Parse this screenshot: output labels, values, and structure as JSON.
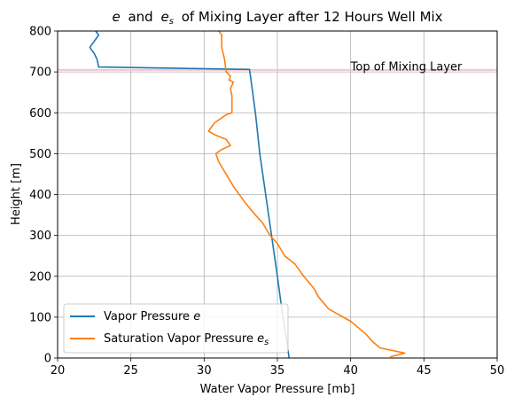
{
  "chart_data": {
    "type": "line",
    "title_main": "and",
    "title_tail": "of Mixing Layer after 12 Hours Well Mix",
    "title_e": "e",
    "title_es_base": "e",
    "title_es_sub": "s",
    "xlabel": "Water Vapor Pressure [mb]",
    "ylabel": "Height [m]",
    "xlim": [
      20,
      50
    ],
    "ylim": [
      0,
      800
    ],
    "xticks": [
      20,
      25,
      30,
      35,
      40,
      45,
      50
    ],
    "yticks": [
      0,
      100,
      200,
      300,
      400,
      500,
      600,
      700,
      800
    ],
    "grid": true,
    "legend_location": "lower-left",
    "annotation": {
      "text": "Top of Mixing Layer",
      "x": 40,
      "y": 712,
      "hline_y": 705,
      "line_color": "#f5c6cb"
    },
    "series": [
      {
        "name_prefix": "Vapor Pressure ",
        "name_var": "e",
        "name_sub": "",
        "color": "#1f77b4",
        "points": [
          [
            35.8,
            0
          ],
          [
            35.6,
            50
          ],
          [
            35.3,
            120
          ],
          [
            35.0,
            200
          ],
          [
            34.6,
            300
          ],
          [
            34.2,
            400
          ],
          [
            33.8,
            500
          ],
          [
            33.5,
            600
          ],
          [
            33.1,
            706
          ],
          [
            22.8,
            712
          ],
          [
            22.7,
            730
          ],
          [
            22.5,
            745
          ],
          [
            22.2,
            760
          ],
          [
            22.5,
            775
          ],
          [
            22.8,
            790
          ],
          [
            22.6,
            800
          ]
        ]
      },
      {
        "name_prefix": "Saturation Vapor Pressure ",
        "name_var": "e",
        "name_sub": "s",
        "color": "#ff7f0e",
        "points": [
          [
            42.7,
            3
          ],
          [
            43.7,
            12
          ],
          [
            42.0,
            25
          ],
          [
            41.5,
            40
          ],
          [
            41.0,
            60
          ],
          [
            40.0,
            90
          ],
          [
            39.5,
            100
          ],
          [
            38.5,
            120
          ],
          [
            37.8,
            150
          ],
          [
            37.5,
            170
          ],
          [
            36.8,
            200
          ],
          [
            36.2,
            230
          ],
          [
            35.5,
            250
          ],
          [
            35.0,
            280
          ],
          [
            34.5,
            300
          ],
          [
            34.0,
            330
          ],
          [
            33.5,
            350
          ],
          [
            32.8,
            380
          ],
          [
            32.0,
            420
          ],
          [
            31.5,
            450
          ],
          [
            31.0,
            480
          ],
          [
            30.8,
            500
          ],
          [
            31.2,
            510
          ],
          [
            31.8,
            520
          ],
          [
            31.5,
            535
          ],
          [
            30.8,
            545
          ],
          [
            30.3,
            555
          ],
          [
            30.7,
            575
          ],
          [
            31.5,
            595
          ],
          [
            31.9,
            600
          ],
          [
            31.9,
            640
          ],
          [
            31.8,
            660
          ],
          [
            32.0,
            675
          ],
          [
            31.7,
            680
          ],
          [
            31.8,
            690
          ],
          [
            31.5,
            700
          ],
          [
            31.4,
            730
          ],
          [
            31.2,
            760
          ],
          [
            31.2,
            790
          ],
          [
            31.0,
            800
          ]
        ]
      }
    ]
  }
}
